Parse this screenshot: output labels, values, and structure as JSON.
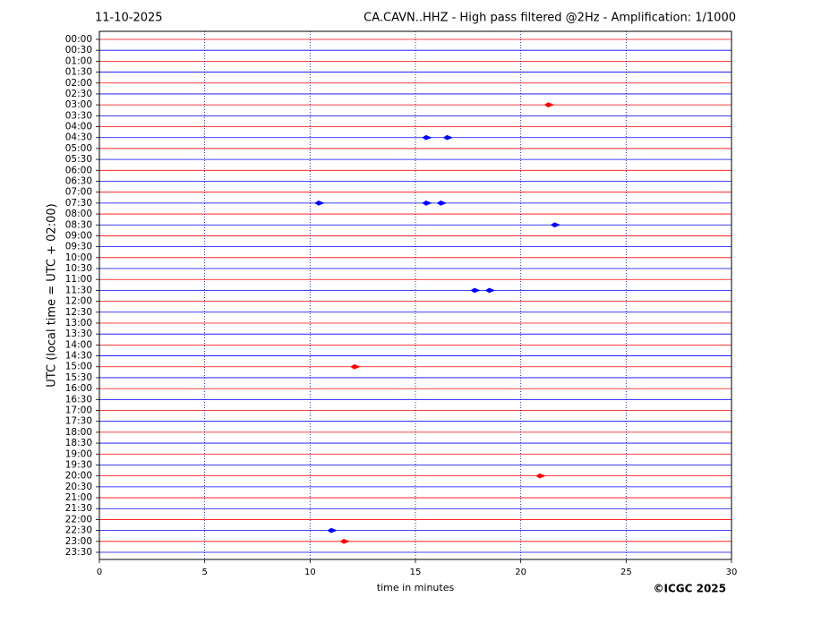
{
  "chart_data": {
    "type": "helicorder",
    "date": "11-10-2025",
    "title": "CA.CAVN..HHZ - High pass filtered @2Hz - Amplification: 1/1000",
    "y_label": "UTC (local time = UTC + 02:00)",
    "x_label": "time in minutes",
    "copyright": "©ICGC 2025",
    "categories": [
      "00:00",
      "00:30",
      "01:00",
      "01:30",
      "02:00",
      "02:30",
      "03:00",
      "03:30",
      "04:00",
      "04:30",
      "05:00",
      "05:30",
      "06:00",
      "06:30",
      "07:00",
      "07:30",
      "08:00",
      "08:30",
      "09:00",
      "09:30",
      "10:00",
      "10:30",
      "11:00",
      "11:30",
      "12:00",
      "12:30",
      "13:00",
      "13:30",
      "14:00",
      "14:30",
      "15:00",
      "15:30",
      "16:00",
      "16:30",
      "17:00",
      "17:30",
      "18:00",
      "18:30",
      "19:00",
      "19:30",
      "20:00",
      "20:30",
      "21:00",
      "21:30",
      "22:00",
      "22:30",
      "23:00",
      "23:30"
    ],
    "colors": [
      "#ff0000",
      "#0000ff"
    ],
    "events": [
      {
        "category": "03:00",
        "x": 21.3
      },
      {
        "category": "04:30",
        "x": 15.5
      },
      {
        "category": "04:30",
        "x": 16.5
      },
      {
        "category": "07:30",
        "x": 10.4
      },
      {
        "category": "07:30",
        "x": 15.5
      },
      {
        "category": "07:30",
        "x": 16.2
      },
      {
        "category": "08:30",
        "x": 21.6
      },
      {
        "category": "11:30",
        "x": 17.8
      },
      {
        "category": "11:30",
        "x": 18.5
      },
      {
        "category": "15:00",
        "x": 12.1
      },
      {
        "category": "20:00",
        "x": 20.9
      },
      {
        "category": "22:30",
        "x": 11.0
      },
      {
        "category": "23:00",
        "x": 11.6
      }
    ],
    "xlim": [
      0,
      30
    ],
    "xticks": [
      0,
      5,
      10,
      15,
      20,
      25,
      30
    ],
    "grid": true
  }
}
